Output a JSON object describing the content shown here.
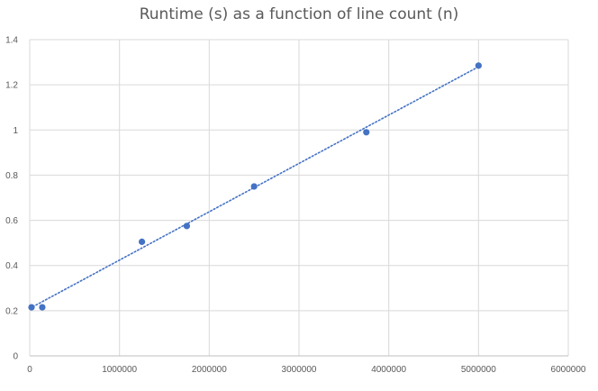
{
  "chart_data": {
    "type": "scatter",
    "title": "Runtime (s) as a function of line count (n)",
    "xlabel": "",
    "ylabel": "",
    "xlim": [
      0,
      6000000
    ],
    "ylim": [
      0,
      1.4
    ],
    "x_ticks": [
      "0",
      "1000000",
      "2000000",
      "3000000",
      "4000000",
      "5000000",
      "6000000"
    ],
    "y_ticks": [
      "0",
      "0.2",
      "0.4",
      "0.6",
      "0.8",
      "1",
      "1.2",
      "1.4"
    ],
    "grid": true,
    "legend": "none",
    "series": [
      {
        "color": "#4472C4",
        "points": [
          [
            20000,
            0.215
          ],
          [
            140000,
            0.215
          ],
          [
            1250000,
            0.505
          ],
          [
            1750000,
            0.575
          ],
          [
            2500000,
            0.75
          ],
          [
            3750000,
            0.99
          ],
          [
            5000000,
            1.285
          ]
        ],
        "trendline": {
          "type": "linear",
          "style": "dotted",
          "from": [
            0,
            0.21
          ],
          "to": [
            5000000,
            1.28
          ]
        }
      }
    ]
  }
}
